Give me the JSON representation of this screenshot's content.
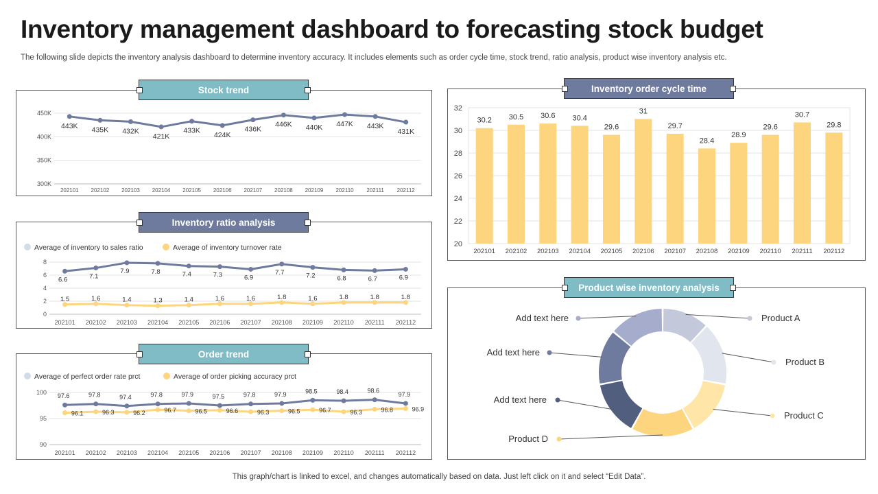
{
  "page": {
    "title": "Inventory management dashboard to forecasting stock budget",
    "subtitle": "The following slide depicts the inventory analysis dashboard to determine inventory accuracy. It includes elements such as order cycle time, stock trend, ratio analysis, product wise inventory analysis etc.",
    "footer": "This graph/chart is linked to excel, and changes automatically based on data. Just left click on it and select “Edit Data”."
  },
  "panels": {
    "stock_trend": "Stock trend",
    "ratio": "Inventory ratio analysis",
    "order_trend": "Order trend",
    "cycle": "Inventory order cycle time",
    "product": "Product wise inventory analysis"
  },
  "colors": {
    "slate": "#6e7b9e",
    "yellow": "#fdd57e",
    "light_blue": "#d2dce8",
    "teal_header": "#7fbcc6"
  },
  "chart_data": [
    {
      "id": "stock_trend",
      "type": "line",
      "categories": [
        "202101",
        "202102",
        "202103",
        "202104",
        "202105",
        "202106",
        "202107",
        "202108",
        "202109",
        "202110",
        "202111",
        "202112"
      ],
      "series": [
        {
          "values": [
            443,
            435,
            432,
            421,
            433,
            424,
            436,
            446,
            440,
            447,
            443,
            431
          ],
          "labels": [
            "443K",
            "435K",
            "432K",
            "421K",
            "433K",
            "424K",
            "436K",
            "446K",
            "440K",
            "447K",
            "443K",
            "431K"
          ]
        }
      ],
      "y_ticks": [
        "450K",
        "400K",
        "350K",
        "300K"
      ],
      "ylim": [
        300,
        450
      ],
      "grid": true
    },
    {
      "id": "ratio",
      "type": "line",
      "categories": [
        "202101",
        "202102",
        "202103",
        "202104",
        "202105",
        "202106",
        "202107",
        "202108",
        "202109",
        "202110",
        "202111",
        "202112"
      ],
      "series": [
        {
          "name": "Average of inventory to sales ratio",
          "values": [
            6.6,
            7.1,
            7.9,
            7.8,
            7.4,
            7.3,
            6.9,
            7.7,
            7.2,
            6.8,
            6.7,
            6.9
          ]
        },
        {
          "name": "Average of inventory turnover rate",
          "values": [
            1.5,
            1.6,
            1.4,
            1.3,
            1.4,
            1.6,
            1.6,
            1.8,
            1.6,
            1.8,
            1.8,
            1.8
          ]
        }
      ],
      "y_ticks": [
        "8",
        "6",
        "4",
        "2",
        "0"
      ],
      "ylim": [
        0,
        8
      ],
      "legend": "top-left",
      "grid": true
    },
    {
      "id": "order_trend",
      "type": "line",
      "categories": [
        "202101",
        "202102",
        "202103",
        "202104",
        "202105",
        "202106",
        "202107",
        "202108",
        "202109",
        "202110",
        "202111",
        "202112"
      ],
      "series": [
        {
          "name": "Average of perfect order rate prct",
          "values": [
            97.6,
            97.8,
            97.4,
            97.8,
            97.9,
            97.5,
            97.8,
            97.9,
            98.5,
            98.4,
            98.6,
            97.9
          ]
        },
        {
          "name": "Average of order picking accuracy prct",
          "values": [
            96.1,
            96.3,
            96.2,
            96.7,
            96.5,
            96.6,
            96.3,
            96.5,
            96.7,
            96.3,
            96.8,
            96.9
          ]
        }
      ],
      "y_ticks": [
        "100",
        "95",
        "90"
      ],
      "ylim": [
        90,
        100
      ],
      "legend": "top-left",
      "grid": true
    },
    {
      "id": "cycle",
      "type": "bar",
      "categories": [
        "202101",
        "202102",
        "202103",
        "202104",
        "202105",
        "202106",
        "202107",
        "202108",
        "202109",
        "202110",
        "202111",
        "202112"
      ],
      "values": [
        30.2,
        30.5,
        30.6,
        30.4,
        29.6,
        31,
        29.7,
        28.4,
        28.9,
        29.6,
        30.7,
        29.8
      ],
      "labels": [
        "30.2",
        "30.5",
        "30.6",
        "30.4",
        "29.6",
        "31",
        "29.7",
        "28.4",
        "28.9",
        "29.6",
        "30.7",
        "29.8"
      ],
      "y_ticks": [
        "32",
        "30",
        "28",
        "26",
        "24",
        "22",
        "20"
      ],
      "ylim": [
        20,
        32
      ],
      "grid": true
    },
    {
      "id": "product",
      "type": "pie",
      "labels": [
        "Product A",
        "Product B",
        "Product C",
        "Product D",
        "Add text here",
        "Add text here",
        "Add text here"
      ],
      "values": [
        12,
        16,
        14,
        16,
        14,
        14,
        14
      ],
      "colors": [
        "#c3c9da",
        "#e1e5ee",
        "#ffe6a8",
        "#fdd57e",
        "#525e7e",
        "#6e7b9e",
        "#a5accc"
      ]
    }
  ]
}
